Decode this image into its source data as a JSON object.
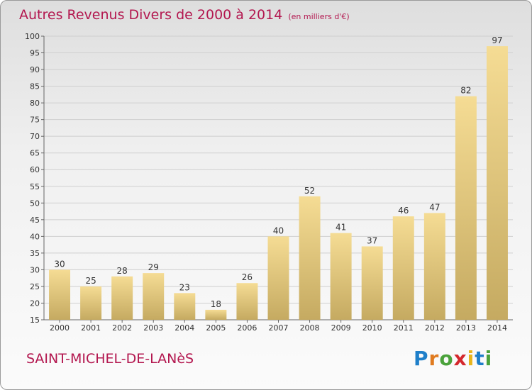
{
  "header": {
    "title": "Autres Revenus Divers de 2000 à 2014",
    "unit": "(en milliers d'€)"
  },
  "footer": {
    "commune": "SAINT-MICHEL-DE-LANèS",
    "logo_letters": [
      {
        "ch": "P",
        "color": "#1f7fc9"
      },
      {
        "ch": "r",
        "color": "#e07b20"
      },
      {
        "ch": "o",
        "color": "#4aa23b"
      },
      {
        "ch": "x",
        "color": "#d4282d"
      },
      {
        "ch": "i",
        "color": "#e8b51b"
      },
      {
        "ch": "t",
        "color": "#1f7fc9"
      },
      {
        "ch": "i",
        "color": "#4aa23b"
      }
    ]
  },
  "chart_data": {
    "type": "bar",
    "title": "Autres Revenus Divers de 2000 à 2014",
    "subtitle": "(en milliers d'€)",
    "xlabel": "",
    "ylabel": "",
    "categories": [
      "2000",
      "2001",
      "2002",
      "2003",
      "2004",
      "2005",
      "2006",
      "2007",
      "2008",
      "2009",
      "2010",
      "2011",
      "2012",
      "2013",
      "2014"
    ],
    "values": [
      30,
      25,
      28,
      29,
      23,
      18,
      26,
      40,
      52,
      41,
      37,
      46,
      47,
      82,
      97
    ],
    "ylim": [
      15,
      100
    ],
    "yticks": [
      15,
      20,
      25,
      30,
      35,
      40,
      45,
      50,
      55,
      60,
      65,
      70,
      75,
      80,
      85,
      90,
      95,
      100
    ],
    "grid": true,
    "bar_color_top": "#f5dc94",
    "bar_color_bottom": "#c5aa61"
  }
}
